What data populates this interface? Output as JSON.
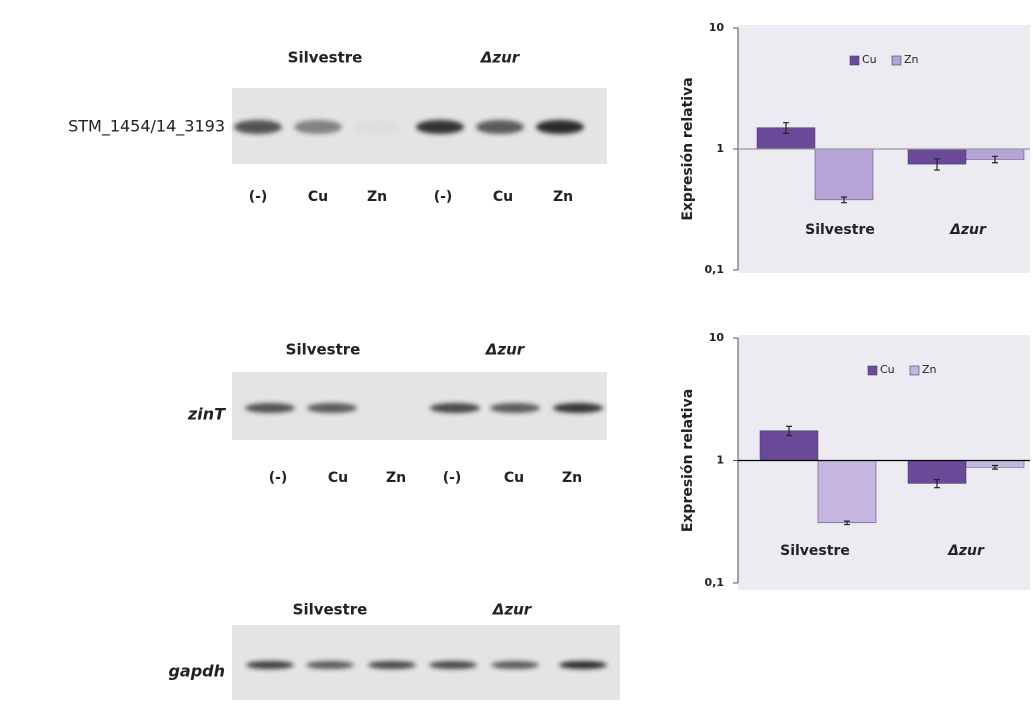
{
  "blots": [
    {
      "label": "STM_1454/14_3193",
      "groups": [
        "Silvestre",
        "Δzur"
      ],
      "lanes": [
        "(-)",
        "Cu",
        "Zn",
        "(-)",
        "Cu",
        "Zn"
      ]
    },
    {
      "label": "zinT",
      "groups": [
        "Silvestre",
        "Δzur"
      ],
      "lanes": [
        "(-)",
        "Cu",
        "Zn",
        "(-)",
        "Cu",
        "Zn"
      ]
    },
    {
      "label": "gapdh",
      "groups": [
        "Silvestre",
        "Δzur"
      ]
    }
  ],
  "chart_data": [
    {
      "type": "bar",
      "scale": "log",
      "ylabel": "Expresión relativa",
      "categories": [
        "Silvestre",
        "Δzur"
      ],
      "baseline": 1,
      "ylim": [
        0.1,
        10
      ],
      "yticks": [
        {
          "value": 0.1,
          "label": "0,1"
        },
        1,
        10
      ],
      "legend": "top",
      "series": [
        {
          "name": "Cu",
          "color": "#6a4a98",
          "values": [
            1.5,
            0.75
          ],
          "errors": [
            0.15,
            0.08
          ]
        },
        {
          "name": "Zn",
          "color": "#b7a4d6",
          "values": [
            0.38,
            0.82
          ],
          "errors": [
            0.02,
            0.05
          ]
        }
      ]
    },
    {
      "type": "bar",
      "scale": "log",
      "ylabel": "Expresión relativa",
      "categories": [
        "Silvestre",
        "Δzur"
      ],
      "baseline": 1,
      "ylim": [
        0.1,
        10
      ],
      "yticks": [
        {
          "value": 0.1,
          "label": "0,1"
        },
        1,
        10
      ],
      "legend": "top",
      "series": [
        {
          "name": "Cu",
          "color": "#6a4a98",
          "values": [
            1.75,
            0.65
          ],
          "errors": [
            0.15,
            0.05
          ]
        },
        {
          "name": "Zn",
          "color": "#c4b6de",
          "values": [
            0.31,
            0.88
          ],
          "errors": [
            0.01,
            0.03
          ]
        }
      ]
    }
  ]
}
